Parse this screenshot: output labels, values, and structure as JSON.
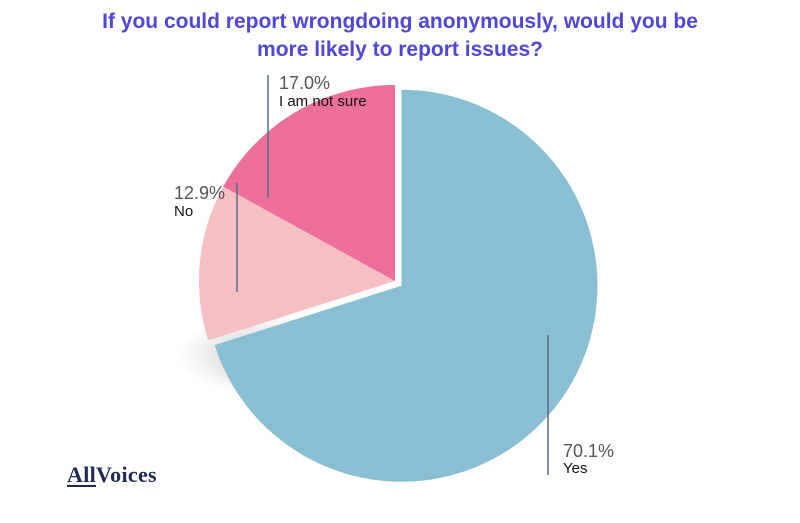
{
  "chart_data": {
    "type": "pie",
    "title_lines": [
      "If you could report wrongdoing anonymously, would you be",
      "more likely to report issues?"
    ],
    "slices": [
      {
        "label": "Yes",
        "value": 70.1,
        "value_label": "70.1%",
        "color": "#88bfd3"
      },
      {
        "label": "No",
        "value": 12.9,
        "value_label": "12.9%",
        "color": "#f6bfc4"
      },
      {
        "label": "I am not sure",
        "value": 17.0,
        "value_label": "17.0%",
        "color": "#ec6f99"
      }
    ],
    "exploded_slice": "Yes",
    "legend": "none"
  },
  "branding": {
    "logo_part1": "All",
    "logo_part2": "Voices"
  }
}
